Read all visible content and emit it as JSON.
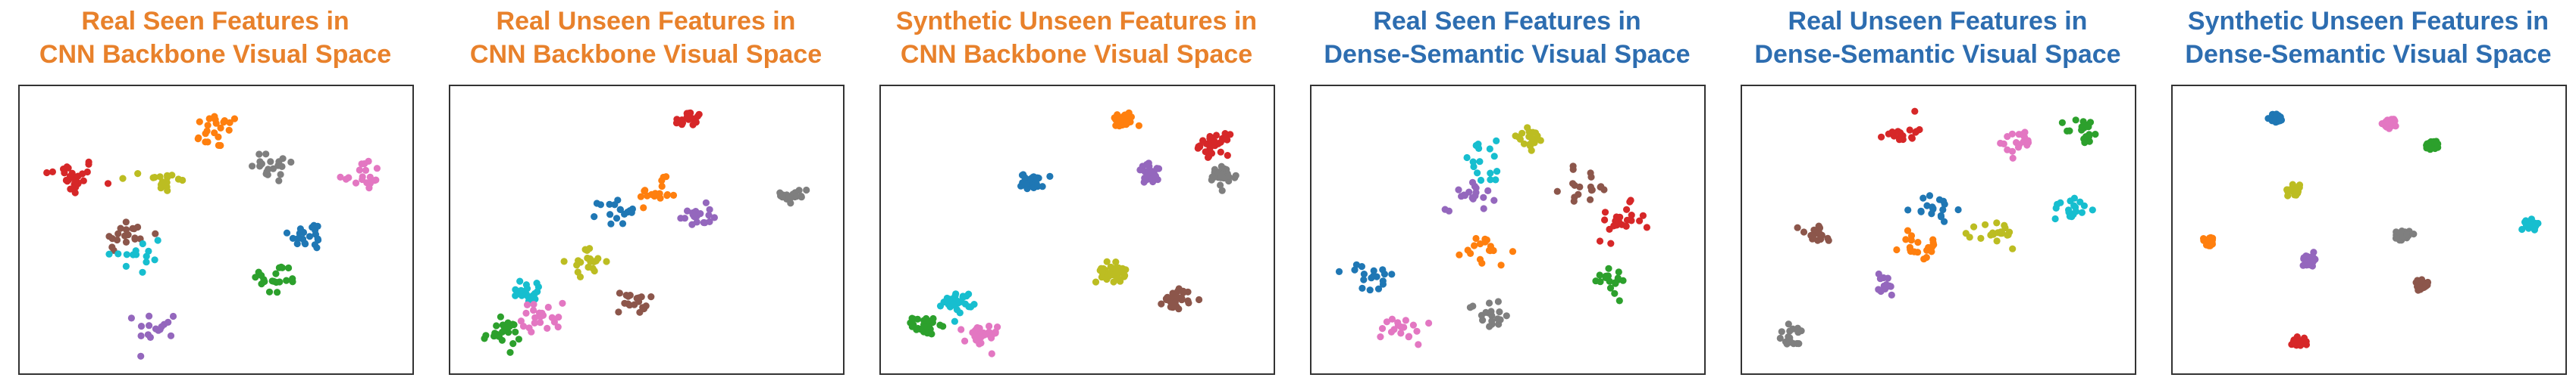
{
  "colors": {
    "cnn_title": "#E8812B",
    "dense_title": "#2D6DB0",
    "classes": [
      "#D62728",
      "#1F77B4",
      "#FF7F0E",
      "#2CA02C",
      "#9467BD",
      "#8C564B",
      "#E377C2",
      "#7F7F7F",
      "#BCBD22",
      "#17BECF"
    ]
  },
  "chart_data": [
    {
      "type": "scatter",
      "title_line1": "Real Seen Features in",
      "title_line2": "CNN Backbone Visual Space",
      "title_color": "cnn_title",
      "xlim": [
        0,
        100
      ],
      "ylim": [
        0,
        100
      ],
      "grid": false,
      "legend": "none",
      "clusters": [
        {
          "class": 0,
          "cx": 11,
          "cy": 70,
          "spread": 6.5,
          "n": 26
        },
        {
          "class": 2,
          "cx": 50,
          "cy": 87,
          "spread": 6,
          "n": 22
        },
        {
          "class": 7,
          "cx": 66,
          "cy": 74,
          "spread": 6,
          "n": 20
        },
        {
          "class": 6,
          "cx": 89,
          "cy": 71,
          "spread": 5.5,
          "n": 18
        },
        {
          "class": 8,
          "cx": 36,
          "cy": 68,
          "spread": 5,
          "n": 18
        },
        {
          "class": 5,
          "cx": 26,
          "cy": 48,
          "spread": 6,
          "n": 20
        },
        {
          "class": 9,
          "cx": 28,
          "cy": 40,
          "spread": 8,
          "n": 14
        },
        {
          "class": 1,
          "cx": 75,
          "cy": 48,
          "spread": 5,
          "n": 20
        },
        {
          "class": 3,
          "cx": 66,
          "cy": 31,
          "spread": 6,
          "n": 20
        },
        {
          "class": 4,
          "cx": 34,
          "cy": 14,
          "spread": 5,
          "n": 16
        }
      ]
    },
    {
      "type": "scatter",
      "title_line1": "Real Unseen Features in",
      "title_line2": "CNN Backbone Visual Space",
      "title_color": "cnn_title",
      "xlim": [
        0,
        100
      ],
      "ylim": [
        0,
        100
      ],
      "grid": false,
      "legend": "none",
      "clusters": [
        {
          "class": 0,
          "cx": 61,
          "cy": 91,
          "spread": 3.5,
          "n": 20
        },
        {
          "class": 2,
          "cx": 53,
          "cy": 64,
          "spread": 4.5,
          "n": 18
        },
        {
          "class": 1,
          "cx": 42,
          "cy": 57,
          "spread": 4.5,
          "n": 18
        },
        {
          "class": 4,
          "cx": 63,
          "cy": 55,
          "spread": 4,
          "n": 18
        },
        {
          "class": 7,
          "cx": 90,
          "cy": 63,
          "spread": 3.5,
          "n": 18
        },
        {
          "class": 8,
          "cx": 34,
          "cy": 38,
          "spread": 4.5,
          "n": 20
        },
        {
          "class": 9,
          "cx": 18,
          "cy": 27,
          "spread": 4.5,
          "n": 20
        },
        {
          "class": 6,
          "cx": 22,
          "cy": 17,
          "spread": 5,
          "n": 22
        },
        {
          "class": 5,
          "cx": 46,
          "cy": 23,
          "spread": 4,
          "n": 18
        },
        {
          "class": 3,
          "cx": 11,
          "cy": 11,
          "spread": 4.5,
          "n": 24
        }
      ]
    },
    {
      "type": "scatter",
      "title_line1": "Synthetic Unseen Features in",
      "title_line2": "CNN Backbone Visual Space",
      "title_color": "cnn_title",
      "xlim": [
        0,
        100
      ],
      "ylim": [
        0,
        100
      ],
      "grid": false,
      "legend": "none",
      "clusters": [
        {
          "class": 2,
          "cx": 62,
          "cy": 91,
          "spread": 3,
          "n": 30
        },
        {
          "class": 0,
          "cx": 87,
          "cy": 82,
          "spread": 3.5,
          "n": 32
        },
        {
          "class": 4,
          "cx": 70,
          "cy": 71,
          "spread": 3.5,
          "n": 30
        },
        {
          "class": 7,
          "cx": 89,
          "cy": 70,
          "spread": 3.5,
          "n": 30
        },
        {
          "class": 1,
          "cx": 38,
          "cy": 68,
          "spread": 2.8,
          "n": 32
        },
        {
          "class": 8,
          "cx": 59,
          "cy": 34,
          "spread": 3.5,
          "n": 34
        },
        {
          "class": 5,
          "cx": 77,
          "cy": 24,
          "spread": 3.5,
          "n": 30
        },
        {
          "class": 9,
          "cx": 18,
          "cy": 23,
          "spread": 3.5,
          "n": 30
        },
        {
          "class": 3,
          "cx": 9,
          "cy": 14,
          "spread": 3,
          "n": 32
        },
        {
          "class": 6,
          "cx": 24,
          "cy": 10,
          "spread": 4,
          "n": 32
        }
      ]
    },
    {
      "type": "scatter",
      "title_line1": "Real Seen Features in",
      "title_line2": "Dense-Semantic Visual Space",
      "title_color": "dense_title",
      "xlim": [
        0,
        100
      ],
      "ylim": [
        0,
        100
      ],
      "grid": false,
      "legend": "none",
      "clusters": [
        {
          "class": 8,
          "cx": 55,
          "cy": 84,
          "spread": 5,
          "n": 18
        },
        {
          "class": 9,
          "cx": 44,
          "cy": 75,
          "spread": 7,
          "n": 16
        },
        {
          "class": 4,
          "cx": 40,
          "cy": 64,
          "spread": 6,
          "n": 18
        },
        {
          "class": 5,
          "cx": 71,
          "cy": 66,
          "spread": 6,
          "n": 18
        },
        {
          "class": 0,
          "cx": 80,
          "cy": 53,
          "spread": 6,
          "n": 22
        },
        {
          "class": 2,
          "cx": 44,
          "cy": 42,
          "spread": 6,
          "n": 18
        },
        {
          "class": 1,
          "cx": 13,
          "cy": 31,
          "spread": 6,
          "n": 18
        },
        {
          "class": 3,
          "cx": 77,
          "cy": 32,
          "spread": 6,
          "n": 18
        },
        {
          "class": 7,
          "cx": 45,
          "cy": 18,
          "spread": 5,
          "n": 18
        },
        {
          "class": 6,
          "cx": 22,
          "cy": 13,
          "spread": 5.5,
          "n": 18
        }
      ]
    },
    {
      "type": "scatter",
      "title_line1": "Real Unseen Features in",
      "title_line2": "Dense-Semantic Visual Space",
      "title_color": "dense_title",
      "xlim": [
        0,
        100
      ],
      "ylim": [
        0,
        100
      ],
      "grid": false,
      "legend": "none",
      "clusters": [
        {
          "class": 0,
          "cx": 40,
          "cy": 87,
          "spread": 4,
          "n": 18
        },
        {
          "class": 6,
          "cx": 72,
          "cy": 83,
          "spread": 5,
          "n": 18
        },
        {
          "class": 3,
          "cx": 89,
          "cy": 87,
          "spread": 4.5,
          "n": 18
        },
        {
          "class": 9,
          "cx": 86,
          "cy": 58,
          "spread": 4.5,
          "n": 20
        },
        {
          "class": 1,
          "cx": 49,
          "cy": 58,
          "spread": 5,
          "n": 18
        },
        {
          "class": 8,
          "cx": 66,
          "cy": 48,
          "spread": 5,
          "n": 20
        },
        {
          "class": 2,
          "cx": 45,
          "cy": 44,
          "spread": 5,
          "n": 20
        },
        {
          "class": 5,
          "cx": 17,
          "cy": 48,
          "spread": 4.5,
          "n": 16
        },
        {
          "class": 4,
          "cx": 35,
          "cy": 29,
          "spread": 4,
          "n": 14
        },
        {
          "class": 7,
          "cx": 11,
          "cy": 10,
          "spread": 4,
          "n": 18
        }
      ]
    },
    {
      "type": "scatter",
      "title_line1": "Synthetic Unseen Features in",
      "title_line2": "Dense-Semantic Visual Space",
      "title_color": "dense_title",
      "xlim": [
        0,
        100
      ],
      "ylim": [
        0,
        100
      ],
      "grid": false,
      "legend": "none",
      "clusters": [
        {
          "class": 1,
          "cx": 25,
          "cy": 92,
          "spread": 1.6,
          "n": 32
        },
        {
          "class": 6,
          "cx": 56,
          "cy": 90,
          "spread": 1.7,
          "n": 30
        },
        {
          "class": 3,
          "cx": 67,
          "cy": 82,
          "spread": 1.7,
          "n": 30
        },
        {
          "class": 8,
          "cx": 30,
          "cy": 65,
          "spread": 1.7,
          "n": 30
        },
        {
          "class": 2,
          "cx": 7,
          "cy": 46,
          "spread": 1.6,
          "n": 30
        },
        {
          "class": 7,
          "cx": 59,
          "cy": 48,
          "spread": 1.7,
          "n": 30
        },
        {
          "class": 9,
          "cx": 94,
          "cy": 52,
          "spread": 1.6,
          "n": 30
        },
        {
          "class": 4,
          "cx": 34,
          "cy": 39,
          "spread": 1.8,
          "n": 32
        },
        {
          "class": 5,
          "cx": 64,
          "cy": 29,
          "spread": 1.7,
          "n": 30
        },
        {
          "class": 0,
          "cx": 31,
          "cy": 8,
          "spread": 1.7,
          "n": 30
        }
      ]
    }
  ]
}
